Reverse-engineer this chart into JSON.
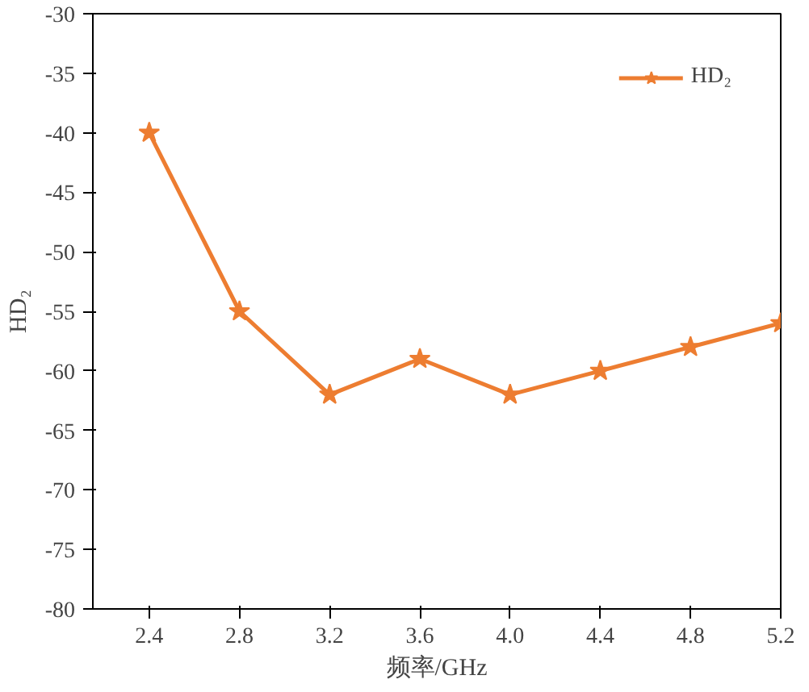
{
  "chart_data": {
    "type": "line",
    "xlabel": "频率/GHz",
    "ylabel": "HD₂",
    "x": [
      2.4,
      2.8,
      3.2,
      3.6,
      4.0,
      4.4,
      4.8,
      5.2
    ],
    "series": [
      {
        "name": "HD₂",
        "color": "#ed7d31",
        "values": [
          -40,
          -55,
          -62,
          -59,
          -62,
          -60,
          -58,
          -56
        ]
      }
    ],
    "xlim": [
      2.15,
      5.2
    ],
    "ylim": [
      -80,
      -30
    ],
    "xticks": [
      {
        "value": 2.4,
        "label": "2.4"
      },
      {
        "value": 2.8,
        "label": "2.8"
      },
      {
        "value": 3.2,
        "label": "3.2"
      },
      {
        "value": 3.6,
        "label": "3.6"
      },
      {
        "value": 4.0,
        "label": "4.0"
      },
      {
        "value": 4.4,
        "label": "4.4"
      },
      {
        "value": 4.8,
        "label": "4.8"
      },
      {
        "value": 5.2,
        "label": "5.2"
      }
    ],
    "yticks": [
      -80,
      -75,
      -70,
      -65,
      -60,
      -55,
      -50,
      -45,
      -40,
      -35,
      -30
    ],
    "grid": false,
    "legend": "top right",
    "marker": "star",
    "line_style": "solid"
  }
}
